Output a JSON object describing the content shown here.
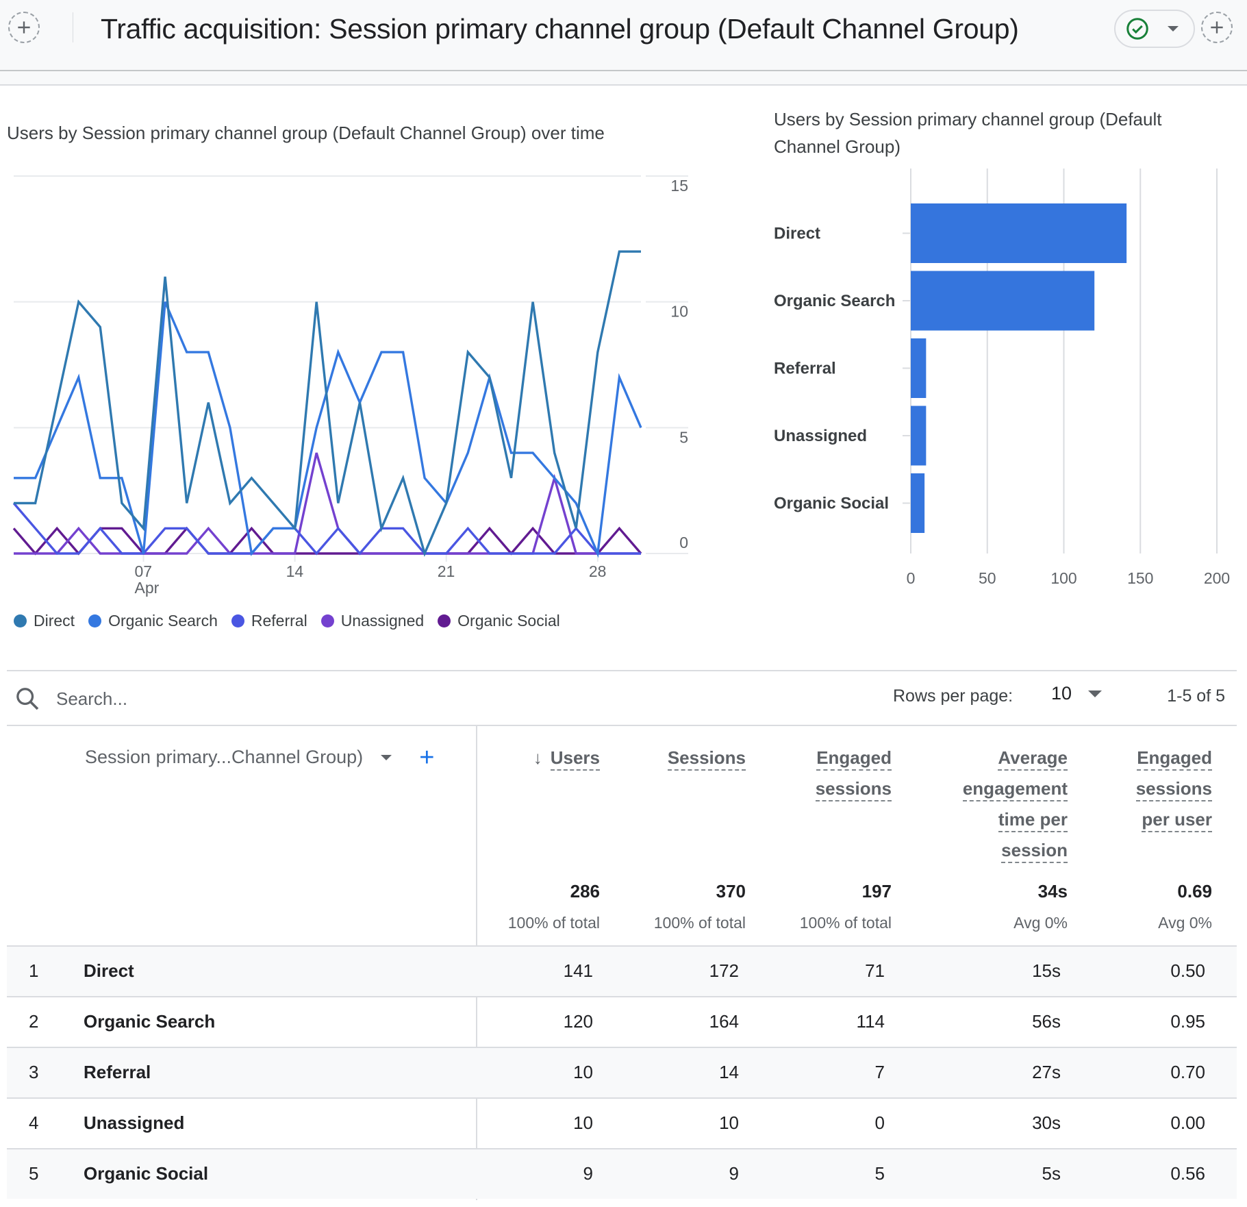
{
  "header": {
    "title": "Traffic acquisition: Session primary channel group (Default Channel Group)",
    "add_comparison_icon": "plus-circle-dashed-icon",
    "status_icon": "check-circle-icon",
    "status_color": "#188038"
  },
  "line_chart_title": "Users by Session primary channel group (Default Channel Group) over time",
  "bar_chart_title": "Users by Session primary channel group (Default Channel Group)",
  "chart_data": [
    {
      "type": "line",
      "title": "Users by Session primary channel group (Default Channel Group) over time",
      "xlabel": "",
      "ylabel": "",
      "x": [
        "Apr 1",
        "Apr 2",
        "Apr 3",
        "Apr 4",
        "Apr 5",
        "Apr 6",
        "Apr 7",
        "Apr 8",
        "Apr 9",
        "Apr 10",
        "Apr 11",
        "Apr 12",
        "Apr 13",
        "Apr 14",
        "Apr 15",
        "Apr 16",
        "Apr 17",
        "Apr 18",
        "Apr 19",
        "Apr 20",
        "Apr 21",
        "Apr 22",
        "Apr 23",
        "Apr 24",
        "Apr 25",
        "Apr 26",
        "Apr 27",
        "Apr 28",
        "Apr 29",
        "Apr 30"
      ],
      "x_ticks": [
        {
          "index": 6,
          "label": "07",
          "sublabel": "Apr"
        },
        {
          "index": 13,
          "label": "14",
          "sublabel": ""
        },
        {
          "index": 20,
          "label": "21",
          "sublabel": ""
        },
        {
          "index": 27,
          "label": "28",
          "sublabel": ""
        }
      ],
      "ylim": [
        0,
        15
      ],
      "y_ticks": [
        "0",
        "5",
        "10",
        "15"
      ],
      "y_axis_side": "right",
      "grid": true,
      "legend_position": "bottom-left",
      "series": [
        {
          "name": "Direct",
          "color": "#2f79b0",
          "values": [
            2,
            2,
            6,
            10,
            9,
            2,
            1,
            11,
            2,
            6,
            2,
            3,
            2,
            1,
            10,
            2,
            6,
            1,
            3,
            0,
            2,
            8,
            7,
            3,
            10,
            4,
            1,
            8,
            12,
            12
          ]
        },
        {
          "name": "Organic Search",
          "color": "#3478e0",
          "values": [
            3,
            3,
            5,
            7,
            3,
            3,
            0,
            10,
            8,
            8,
            5,
            0,
            1,
            1,
            5,
            8,
            6,
            8,
            8,
            3,
            2,
            4,
            7,
            4,
            4,
            3,
            2,
            0,
            7,
            5
          ]
        },
        {
          "name": "Referral",
          "color": "#4a56e2",
          "values": [
            2,
            1,
            0,
            0,
            1,
            0,
            0,
            1,
            1,
            0,
            0,
            0,
            1,
            1,
            0,
            1,
            0,
            1,
            1,
            0,
            0,
            1,
            0,
            0,
            0,
            0,
            1,
            0,
            0,
            0
          ]
        },
        {
          "name": "Unassigned",
          "color": "#7441cf",
          "values": [
            0,
            0,
            0,
            1,
            0,
            0,
            0,
            0,
            0,
            1,
            0,
            0,
            0,
            0,
            4,
            1,
            0,
            0,
            0,
            0,
            0,
            0,
            0,
            0,
            0,
            3,
            0,
            0,
            0,
            0
          ]
        },
        {
          "name": "Organic Social",
          "color": "#611b91",
          "values": [
            1,
            0,
            1,
            0,
            1,
            1,
            0,
            0,
            1,
            0,
            0,
            1,
            0,
            0,
            0,
            0,
            0,
            0,
            0,
            0,
            0,
            0,
            1,
            0,
            1,
            0,
            0,
            0,
            1,
            0
          ]
        }
      ]
    },
    {
      "type": "bar",
      "orientation": "horizontal",
      "title": "Users by Session primary channel group (Default Channel Group)",
      "categories": [
        "Direct",
        "Organic Search",
        "Referral",
        "Unassigned",
        "Organic Social"
      ],
      "values": [
        141,
        120,
        10,
        10,
        9
      ],
      "color": "#3575dd",
      "xlim": [
        0,
        200
      ],
      "x_ticks": [
        "0",
        "50",
        "100",
        "150",
        "200"
      ],
      "grid": true
    }
  ],
  "toolbar": {
    "search_placeholder": "Search...",
    "rows_per_page_label": "Rows per page:",
    "rows_per_page_value": "10",
    "pagination": "1-5 of 5"
  },
  "table": {
    "dimension_header": "Session primary...Channel Group)",
    "add_dimension": "+",
    "sort_indicator": "↓",
    "columns": [
      {
        "label_lines": [
          "Users"
        ],
        "total": "286",
        "total_sub": "100% of total",
        "sorted": true
      },
      {
        "label_lines": [
          "Sessions"
        ],
        "total": "370",
        "total_sub": "100% of total"
      },
      {
        "label_lines": [
          "Engaged",
          "sessions"
        ],
        "total": "197",
        "total_sub": "100% of total"
      },
      {
        "label_lines": [
          "Average",
          "engagement",
          "time per",
          "session"
        ],
        "total": "34s",
        "total_sub": "Avg 0%"
      },
      {
        "label_lines": [
          "Engaged",
          "sessions",
          "per user"
        ],
        "total": "0.69",
        "total_sub": "Avg 0%"
      }
    ],
    "rows": [
      {
        "rank": "1",
        "name": "Direct",
        "cells": [
          "141",
          "172",
          "71",
          "15s",
          "0.50"
        ]
      },
      {
        "rank": "2",
        "name": "Organic Search",
        "cells": [
          "120",
          "164",
          "114",
          "56s",
          "0.95"
        ]
      },
      {
        "rank": "3",
        "name": "Referral",
        "cells": [
          "10",
          "14",
          "7",
          "27s",
          "0.70"
        ]
      },
      {
        "rank": "4",
        "name": "Unassigned",
        "cells": [
          "10",
          "10",
          "0",
          "30s",
          "0.00"
        ]
      },
      {
        "rank": "5",
        "name": "Organic Social",
        "cells": [
          "9",
          "9",
          "5",
          "5s",
          "0.56"
        ]
      }
    ]
  }
}
